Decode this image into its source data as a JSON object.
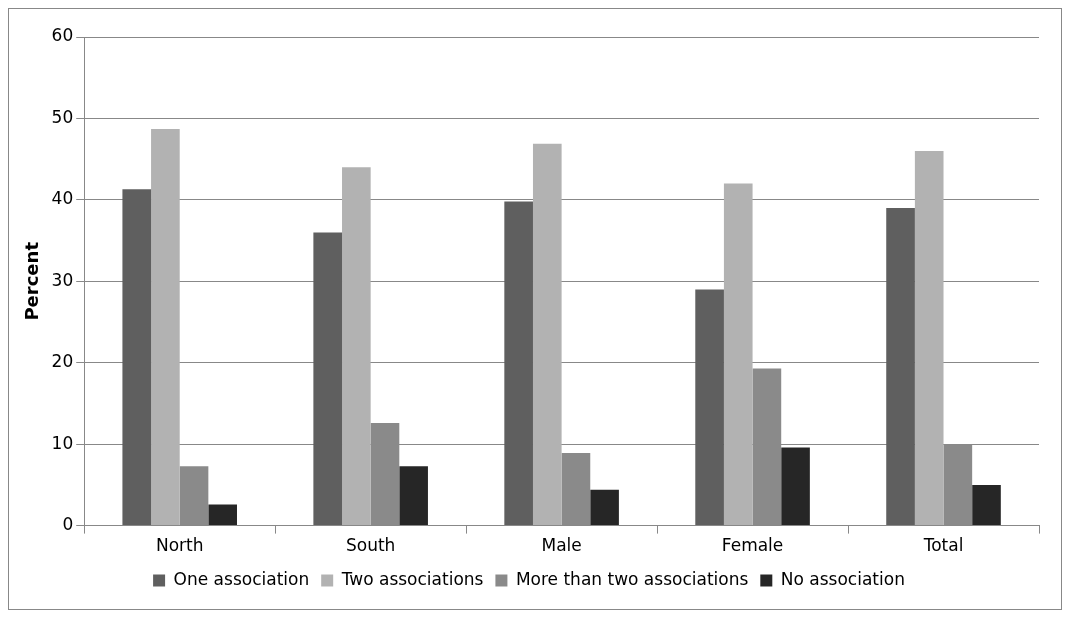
{
  "chart_data": {
    "type": "bar",
    "ylabel": "Percent",
    "categories": [
      "North",
      "South",
      "Male",
      "Female",
      "Total"
    ],
    "series": [
      {
        "name": "One association",
        "color": "#5f5f5f",
        "values": [
          41.3,
          36,
          39.8,
          29,
          39
        ]
      },
      {
        "name": "Two associations",
        "color": "#b2b2b2",
        "values": [
          48.7,
          44,
          46.9,
          42,
          46
        ]
      },
      {
        "name": "More than two associations",
        "color": "#8a8a8a",
        "values": [
          7.3,
          12.6,
          8.9,
          19.3,
          10
        ]
      },
      {
        "name": "No association",
        "color": "#262626",
        "values": [
          2.6,
          7.3,
          4.4,
          9.6,
          5
        ]
      }
    ],
    "ylim": [
      0,
      60
    ],
    "yticks": [
      0,
      10,
      20,
      30,
      40,
      50,
      60
    ],
    "grid": "y",
    "legend": "bottom"
  }
}
